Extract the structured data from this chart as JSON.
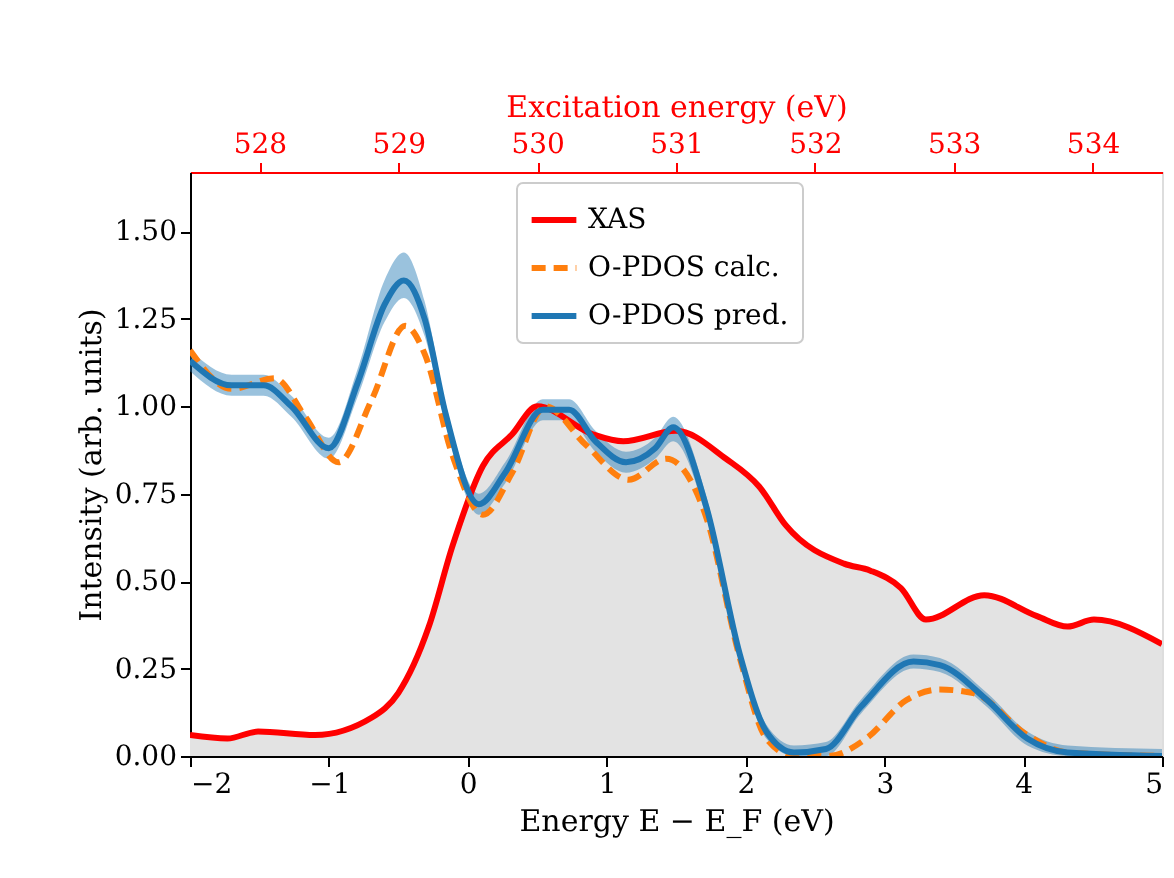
{
  "chart_data": {
    "type": "line",
    "xlabel": "Energy E − E_F (eV)",
    "ylabel": "Intensity (arb. units)",
    "x2label": "Excitation energy (eV)",
    "xlim": [
      -2,
      5
    ],
    "xticks": [
      -2,
      -1,
      0,
      1,
      2,
      3,
      4,
      5
    ],
    "x2lim": [
      527.5,
      534.5
    ],
    "x2ticks": [
      528,
      529,
      530,
      531,
      532,
      533,
      534
    ],
    "ylim": [
      0,
      1.67
    ],
    "yticks": [
      {
        "value": 0,
        "label": "0.00"
      },
      {
        "value": 0.25,
        "label": "0.25"
      },
      {
        "value": 0.5,
        "label": "0.50"
      },
      {
        "value": 0.75,
        "label": "0.75"
      },
      {
        "value": 1,
        "label": "1.00"
      },
      {
        "value": 1.25,
        "label": "1.25"
      },
      {
        "value": 1.5,
        "label": "1.50"
      }
    ],
    "grid": false,
    "legend": "top",
    "marker": "none",
    "series": [
      {
        "name": "XAS",
        "type": "area",
        "color": "#ff0000",
        "line_style": "solid",
        "x": [
          -2,
          -1.73,
          -1.51,
          -1.1,
          -0.69,
          -0.5,
          -0.28,
          -0.11,
          0.11,
          0.32,
          0.5,
          0.9,
          1.12,
          1.5,
          1.86,
          2.1,
          2.29,
          2.71,
          2.9,
          3.12,
          3.3,
          3.72,
          4.1,
          4.32,
          4.51,
          5
        ],
        "values": [
          0.06,
          0.05,
          0.07,
          0.06,
          0.11,
          0.18,
          0.37,
          0.6,
          0.83,
          0.92,
          1.0,
          0.92,
          0.9,
          0.93,
          0.85,
          0.77,
          0.66,
          0.55,
          0.53,
          0.48,
          0.39,
          0.46,
          0.4,
          0.37,
          0.39,
          0.32
        ]
      },
      {
        "name": "O-PDOS calc.",
        "type": "line",
        "color": "#ff7f0e",
        "line_style": "dashed",
        "x": [
          -2,
          -1.7,
          -1.39,
          -1.17,
          -0.93,
          -0.69,
          -0.45,
          -0.31,
          -0.11,
          0.11,
          0.32,
          0.56,
          0.85,
          1.16,
          1.43,
          1.72,
          1.96,
          2.15,
          2.35,
          2.6,
          2.87,
          3.16,
          3.4,
          3.64,
          4.03,
          4.32,
          5
        ],
        "values": [
          1.16,
          1.05,
          1.08,
          0.97,
          0.84,
          1.02,
          1.23,
          1.15,
          0.86,
          0.69,
          0.81,
          1.0,
          0.89,
          0.79,
          0.85,
          0.68,
          0.28,
          0.05,
          0.0,
          0.0,
          0.05,
          0.16,
          0.19,
          0.18,
          0.06,
          0.01,
          0.0
        ]
      },
      {
        "name": "O-PDOS pred.",
        "type": "line",
        "color": "#1f77b4",
        "line_style": "solid",
        "x": [
          -2,
          -1.7,
          -1.47,
          -1.27,
          -1.0,
          -0.79,
          -0.6,
          -0.46,
          -0.31,
          -0.16,
          0.08,
          0.27,
          0.54,
          0.73,
          0.92,
          1.14,
          1.35,
          1.48,
          1.72,
          1.96,
          2.15,
          2.35,
          2.58,
          2.83,
          3.21,
          3.4,
          3.74,
          4.03,
          4.32,
          5
        ],
        "values": [
          1.13,
          1.06,
          1.06,
          1.0,
          0.88,
          1.07,
          1.29,
          1.36,
          1.25,
          0.98,
          0.72,
          0.81,
          0.99,
          0.99,
          0.9,
          0.84,
          0.88,
          0.94,
          0.71,
          0.29,
          0.07,
          0.01,
          0.02,
          0.14,
          0.27,
          0.26,
          0.16,
          0.05,
          0.01,
          0.0
        ],
        "lower": [
          1.1,
          1.03,
          1.03,
          0.97,
          0.85,
          1.03,
          1.24,
          1.31,
          1.2,
          0.95,
          0.69,
          0.78,
          0.96,
          0.96,
          0.87,
          0.81,
          0.85,
          0.9,
          0.68,
          0.27,
          0.05,
          0.0,
          0.0,
          0.12,
          0.25,
          0.24,
          0.14,
          0.03,
          0.0,
          0.0
        ],
        "upper": [
          1.16,
          1.09,
          1.09,
          1.03,
          0.91,
          1.11,
          1.36,
          1.44,
          1.3,
          1.01,
          0.75,
          0.84,
          1.02,
          1.02,
          0.93,
          0.87,
          0.91,
          0.97,
          0.74,
          0.31,
          0.09,
          0.03,
          0.04,
          0.16,
          0.29,
          0.28,
          0.18,
          0.07,
          0.03,
          0.02
        ]
      }
    ]
  }
}
